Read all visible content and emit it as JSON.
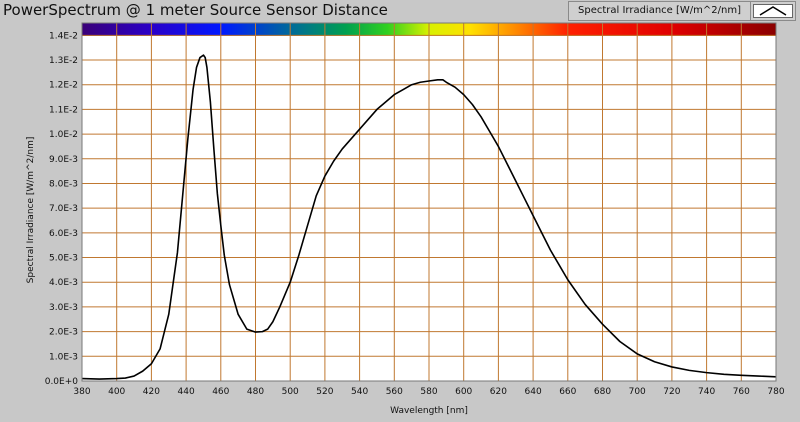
{
  "title": "PowerSpectrum @ 1 meter Source Sensor Distance",
  "legend": {
    "label": "Spectral Irradiance [W/m^2/nm]"
  },
  "colors": {
    "curve": "#000000",
    "grid": "#c07830",
    "plot_bg": "#ffffff",
    "panel_bg": "#c8c8c8"
  },
  "chart_data": {
    "type": "line",
    "xlabel": "Wavelength [nm]",
    "ylabel": "Spectral Irradiance [W/m^2/nm]",
    "xlim": [
      380,
      780
    ],
    "ylim": [
      0,
      0.0145
    ],
    "x_ticks": [
      380,
      400,
      420,
      440,
      460,
      480,
      500,
      520,
      540,
      560,
      580,
      600,
      620,
      640,
      660,
      680,
      700,
      720,
      740,
      760,
      780
    ],
    "y_ticks": [
      {
        "v": 0.0,
        "label": "0.0E+0"
      },
      {
        "v": 0.001,
        "label": "1.0E-3"
      },
      {
        "v": 0.002,
        "label": "2.0E-3"
      },
      {
        "v": 0.003,
        "label": "3.0E-3"
      },
      {
        "v": 0.004,
        "label": "4.0E-3"
      },
      {
        "v": 0.005,
        "label": "5.0E-3"
      },
      {
        "v": 0.006,
        "label": "6.0E-3"
      },
      {
        "v": 0.007,
        "label": "7.0E-3"
      },
      {
        "v": 0.008,
        "label": "8.0E-3"
      },
      {
        "v": 0.009,
        "label": "9.0E-3"
      },
      {
        "v": 0.01,
        "label": "1.0E-2"
      },
      {
        "v": 0.011,
        "label": "1.1E-2"
      },
      {
        "v": 0.012,
        "label": "1.2E-2"
      },
      {
        "v": 0.013,
        "label": "1.3E-2"
      },
      {
        "v": 0.014,
        "label": "1.4E-2"
      }
    ],
    "grid": true,
    "spectrum_bar": true,
    "series": [
      {
        "x": [
          380,
          390,
          400,
          405,
          410,
          415,
          420,
          425,
          430,
          435,
          438,
          441,
          444,
          446,
          448,
          450,
          451,
          452,
          454,
          456,
          458,
          460,
          462,
          465,
          470,
          475,
          480,
          484,
          487,
          490,
          494,
          500,
          505,
          510,
          515,
          520,
          525,
          530,
          535,
          540,
          545,
          550,
          555,
          560,
          565,
          570,
          575,
          580,
          585,
          588,
          590,
          595,
          600,
          605,
          610,
          615,
          620,
          625,
          630,
          635,
          640,
          645,
          650,
          655,
          660,
          665,
          670,
          680,
          690,
          700,
          710,
          720,
          730,
          740,
          750,
          760,
          770,
          780
        ],
        "y": [
          0.0001,
          8e-05,
          0.0001,
          0.00012,
          0.0002,
          0.0004,
          0.0007,
          0.0013,
          0.0027,
          0.0052,
          0.0075,
          0.0098,
          0.0118,
          0.0127,
          0.0131,
          0.0132,
          0.0131,
          0.0127,
          0.0113,
          0.0094,
          0.0076,
          0.0063,
          0.0051,
          0.0039,
          0.0027,
          0.0021,
          0.00198,
          0.002,
          0.0021,
          0.0024,
          0.003,
          0.004,
          0.0051,
          0.0063,
          0.0075,
          0.0083,
          0.0089,
          0.0094,
          0.0098,
          0.0102,
          0.0106,
          0.011,
          0.0113,
          0.0116,
          0.0118,
          0.012,
          0.0121,
          0.01215,
          0.0122,
          0.0122,
          0.0121,
          0.0119,
          0.0116,
          0.0112,
          0.0107,
          0.0101,
          0.0095,
          0.0088,
          0.0081,
          0.0074,
          0.0067,
          0.006,
          0.0053,
          0.0047,
          0.0041,
          0.0036,
          0.0031,
          0.0023,
          0.0016,
          0.0011,
          0.00078,
          0.00057,
          0.00043,
          0.00034,
          0.00027,
          0.00023,
          0.0002,
          0.00017
        ]
      }
    ]
  }
}
